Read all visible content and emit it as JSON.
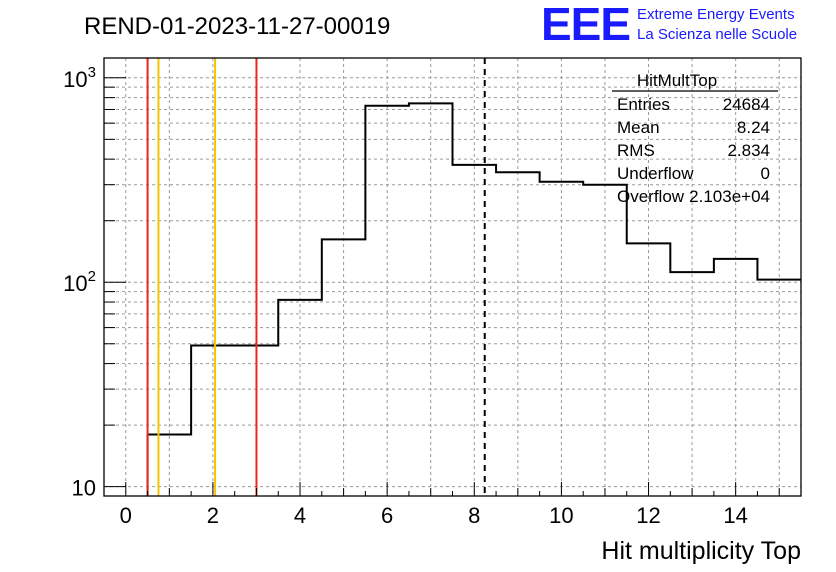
{
  "chart_data": {
    "type": "bar",
    "title": "REND-01-2023-11-27-00019",
    "xlabel": "Hit multiplicity Top",
    "ylabel": "",
    "xlim": [
      -0.5,
      15.5
    ],
    "ylim": [
      9,
      1250
    ],
    "log_y": true,
    "grid": true,
    "x_ticks": [
      "0",
      "2",
      "4",
      "6",
      "8",
      "10",
      "12",
      "14"
    ],
    "x_tick_values": [
      0,
      2,
      4,
      6,
      8,
      10,
      12,
      14
    ],
    "y_ticks": [
      {
        "base": "10",
        "exp": "",
        "value": 10
      },
      {
        "base": "10",
        "exp": "2",
        "value": 100
      },
      {
        "base": "10",
        "exp": "3",
        "value": 1000
      }
    ],
    "bins": [
      {
        "lo": -0.5,
        "hi": 0.5,
        "value": 0
      },
      {
        "lo": 0.5,
        "hi": 1.5,
        "value": 18
      },
      {
        "lo": 1.5,
        "hi": 2.5,
        "value": 49
      },
      {
        "lo": 2.5,
        "hi": 3.5,
        "value": 49
      },
      {
        "lo": 3.5,
        "hi": 4.5,
        "value": 82
      },
      {
        "lo": 4.5,
        "hi": 5.5,
        "value": 162
      },
      {
        "lo": 5.5,
        "hi": 6.5,
        "value": 730
      },
      {
        "lo": 6.5,
        "hi": 7.5,
        "value": 750
      },
      {
        "lo": 7.5,
        "hi": 8.5,
        "value": 375
      },
      {
        "lo": 8.5,
        "hi": 9.5,
        "value": 345
      },
      {
        "lo": 9.5,
        "hi": 10.5,
        "value": 310
      },
      {
        "lo": 10.5,
        "hi": 11.5,
        "value": 300
      },
      {
        "lo": 11.5,
        "hi": 12.5,
        "value": 155
      },
      {
        "lo": 12.5,
        "hi": 13.5,
        "value": 112
      },
      {
        "lo": 13.5,
        "hi": 14.5,
        "value": 130
      },
      {
        "lo": 14.5,
        "hi": 15.5,
        "value": 103
      }
    ],
    "vertical_lines": [
      {
        "x": 0.5,
        "color": "#e8281a",
        "style": "solid"
      },
      {
        "x": 0.75,
        "color": "#f2c500",
        "style": "solid"
      },
      {
        "x": 2.05,
        "color": "#f2c500",
        "style": "solid"
      },
      {
        "x": 3.0,
        "color": "#e8281a",
        "style": "solid"
      },
      {
        "x": 8.24,
        "color": "#000000",
        "style": "dashed"
      }
    ],
    "stats_box": {
      "title": "HitMultTop",
      "rows": [
        {
          "label": "Entries",
          "value": "24684"
        },
        {
          "label": "Mean",
          "value": "8.24"
        },
        {
          "label": "RMS",
          "value": "2.834"
        },
        {
          "label": "Underflow",
          "value": "0"
        },
        {
          "label": "Overflow",
          "value": "2.103e+04"
        }
      ]
    }
  },
  "logo": {
    "mark": "EEE",
    "line1": "Extreme Energy Events",
    "line2": "La Scienza nelle Scuole",
    "color": "#1a1aff"
  }
}
